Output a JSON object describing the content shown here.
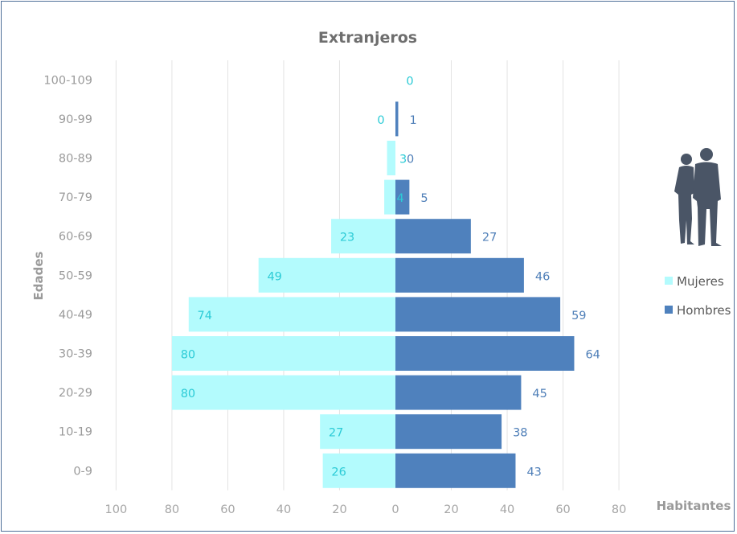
{
  "chart_data": {
    "type": "bar",
    "orientation": "horizontal",
    "title": "Extranjeros",
    "xlabel": "Habitantes",
    "ylabel": "Edades",
    "categories": [
      "0-9",
      "10-19",
      "20-29",
      "30-39",
      "40-49",
      "50-59",
      "60-69",
      "70-79",
      "80-89",
      "90-99",
      "100-109"
    ],
    "series": [
      {
        "name": "Mujeres",
        "color": "#b3fbfd",
        "label_color": "#2ccbd6",
        "values": [
          26,
          27,
          80,
          80,
          74,
          49,
          23,
          4,
          3,
          0,
          0
        ]
      },
      {
        "name": "Hombres",
        "color": "#4f81bd",
        "label_color": "#4f7fb8",
        "values": [
          43,
          38,
          45,
          64,
          59,
          46,
          27,
          5,
          0,
          1,
          null
        ]
      }
    ],
    "xlim": [
      -100,
      80
    ],
    "xticks": [
      -100,
      -80,
      -60,
      -40,
      -20,
      0,
      20,
      40,
      60,
      80
    ],
    "xtick_labels": [
      "100",
      "80",
      "60",
      "40",
      "20",
      "0",
      "20",
      "40",
      "60",
      "80"
    ],
    "grid": true,
    "legend_position": "right",
    "icon": "people-silhouette-icon"
  }
}
